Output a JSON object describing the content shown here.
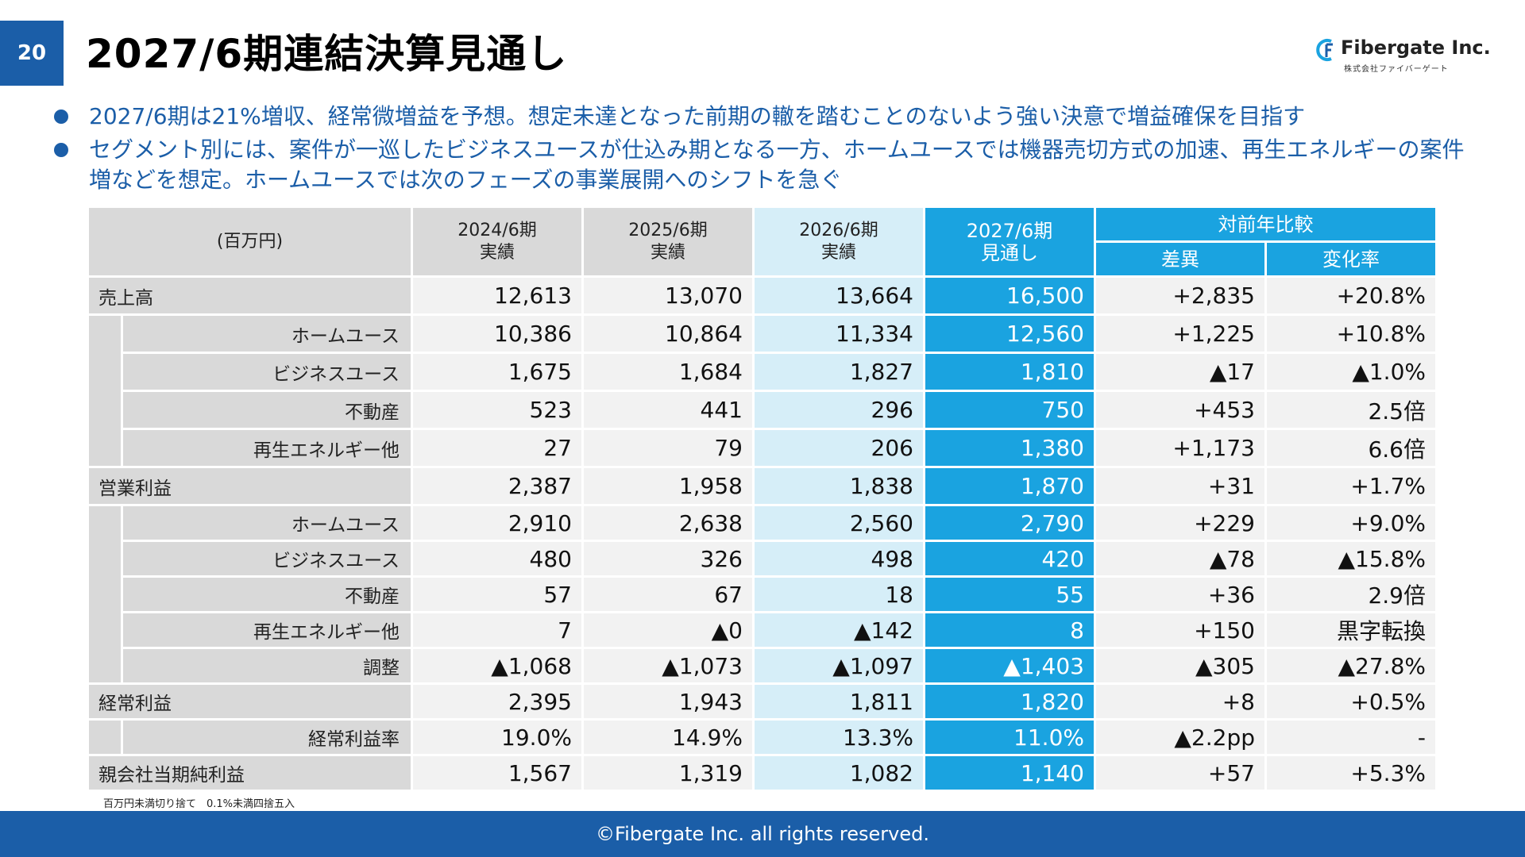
{
  "page_number": "20",
  "title": "2027/6期連結決算見通し",
  "logo": {
    "name": "Fibergate Inc.",
    "sub": "株式会社ファイバーゲート"
  },
  "bullets": [
    "2027/6期は21%増収、経常微増益を予想。想定未達となった前期の轍を踏むことのないよう強い決意で増益確保を目指す",
    "セグメント別には、案件が一巡したビジネスユースが仕込み期となる一方、ホームユースでは機器売切方式の加速、再生エネルギーの案件増などを想定。ホームユースでは次のフェーズの事業展開へのシフトを急ぐ"
  ],
  "table": {
    "unit_label": "(百万円)",
    "col_headers": [
      {
        "period": "2024/6期",
        "kind": "実績"
      },
      {
        "period": "2025/6期",
        "kind": "実績"
      },
      {
        "period": "2026/6期",
        "kind": "実績"
      },
      {
        "period": "2027/6期",
        "kind": "見通し"
      }
    ],
    "compare_header": "対前年比較",
    "compare_cols": [
      "差異",
      "変化率"
    ],
    "rows": [
      {
        "label": "売上高",
        "sub": false,
        "values": [
          "12,613",
          "13,070",
          "13,664",
          "16,500",
          "+2,835",
          "+20.8%"
        ]
      },
      {
        "label": "ホームユース",
        "sub": true,
        "values": [
          "10,386",
          "10,864",
          "11,334",
          "12,560",
          "+1,225",
          "+10.8%"
        ]
      },
      {
        "label": "ビジネスユース",
        "sub": true,
        "values": [
          "1,675",
          "1,684",
          "1,827",
          "1,810",
          "▲17",
          "▲1.0%"
        ]
      },
      {
        "label": "不動産",
        "sub": true,
        "values": [
          "523",
          "441",
          "296",
          "750",
          "+453",
          "2.5倍"
        ]
      },
      {
        "label": "再生エネルギー他",
        "sub": true,
        "values": [
          "27",
          "79",
          "206",
          "1,380",
          "+1,173",
          "6.6倍"
        ]
      },
      {
        "label": "営業利益",
        "sub": false,
        "values": [
          "2,387",
          "1,958",
          "1,838",
          "1,870",
          "+31",
          "+1.7%"
        ]
      },
      {
        "label": "ホームユース",
        "sub": true,
        "values": [
          "2,910",
          "2,638",
          "2,560",
          "2,790",
          "+229",
          "+9.0%"
        ]
      },
      {
        "label": "ビジネスユース",
        "sub": true,
        "values": [
          "480",
          "326",
          "498",
          "420",
          "▲78",
          "▲15.8%"
        ]
      },
      {
        "label": "不動産",
        "sub": true,
        "values": [
          "57",
          "67",
          "18",
          "55",
          "+36",
          "2.9倍"
        ]
      },
      {
        "label": "再生エネルギー他",
        "sub": true,
        "values": [
          "7",
          "▲0",
          "▲142",
          "8",
          "+150",
          "黒字転換"
        ]
      },
      {
        "label": "調整",
        "sub": true,
        "values": [
          "▲1,068",
          "▲1,073",
          "▲1,097",
          "▲1,403",
          "▲305",
          "▲27.8%"
        ]
      },
      {
        "label": "経常利益",
        "sub": false,
        "values": [
          "2,395",
          "1,943",
          "1,811",
          "1,820",
          "+8",
          "+0.5%"
        ]
      },
      {
        "label": "経常利益率",
        "sub": true,
        "values": [
          "19.0%",
          "14.9%",
          "13.3%",
          "11.0%",
          "▲2.2pp",
          "-"
        ]
      },
      {
        "label": "親会社当期純利益",
        "sub": false,
        "values": [
          "1,567",
          "1,319",
          "1,082",
          "1,140",
          "+57",
          "+5.3%"
        ]
      }
    ]
  },
  "note": "百万円未満切り捨て　0.1%未満四捨五入",
  "footer": "©Fibergate Inc. all rights reserved.",
  "colors": {
    "brand_blue": "#1b5ea8",
    "forecast_cyan": "#1aa3e0",
    "light_cyan": "#d6eef8",
    "gray": "#d9d9d9"
  }
}
